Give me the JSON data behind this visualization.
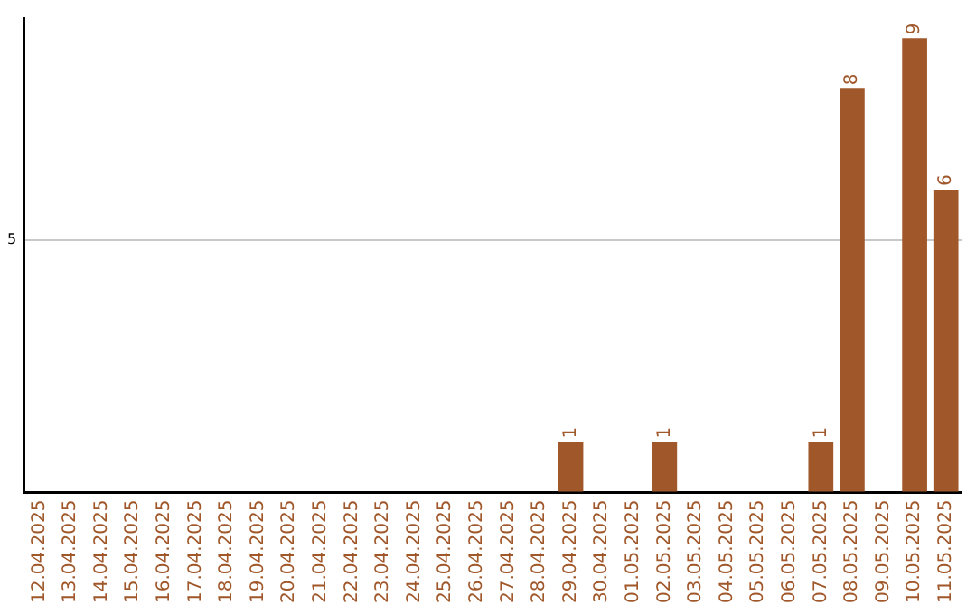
{
  "chart_data": {
    "type": "bar",
    "categories": [
      "12.04.2025",
      "13.04.2025",
      "14.04.2025",
      "15.04.2025",
      "16.04.2025",
      "17.04.2025",
      "18.04.2025",
      "19.04.2025",
      "20.04.2025",
      "21.04.2025",
      "22.04.2025",
      "23.04.2025",
      "24.04.2025",
      "25.04.2025",
      "26.04.2025",
      "27.04.2025",
      "28.04.2025",
      "29.04.2025",
      "30.04.2025",
      "01.05.2025",
      "02.05.2025",
      "03.05.2025",
      "04.05.2025",
      "05.05.2025",
      "06.05.2025",
      "07.05.2025",
      "08.05.2025",
      "09.05.2025",
      "10.05.2025",
      "11.05.2025"
    ],
    "values": [
      null,
      null,
      null,
      null,
      null,
      null,
      null,
      null,
      null,
      null,
      null,
      null,
      null,
      null,
      null,
      null,
      null,
      1,
      null,
      null,
      1,
      null,
      null,
      null,
      null,
      1,
      8,
      null,
      9,
      6
    ],
    "data_labels": true,
    "color": "#a0572a",
    "ylim": [
      0,
      9.4
    ],
    "yticks": [
      {
        "value": 0,
        "label": null
      },
      5
    ],
    "grid": "y",
    "legend": false
  }
}
